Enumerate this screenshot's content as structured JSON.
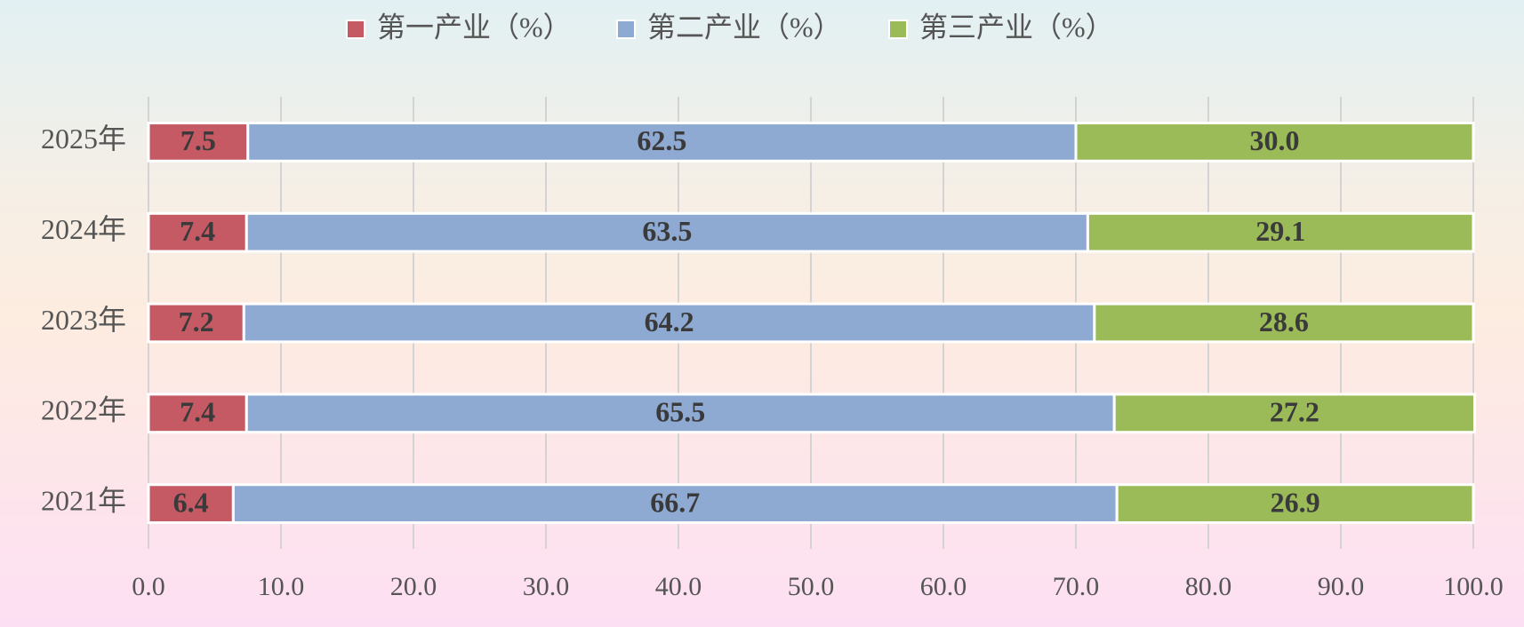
{
  "chart_data": {
    "type": "stacked-barh",
    "categories": [
      "2021年",
      "2022年",
      "2023年",
      "2024年",
      "2025年"
    ],
    "series": [
      {
        "name": "第一产业（%）",
        "color": "#c55a64",
        "values": [
          6.4,
          7.4,
          7.2,
          7.4,
          7.5
        ],
        "value_labels": [
          "6.4",
          "7.4",
          "7.2",
          "7.4",
          "7.5"
        ]
      },
      {
        "name": "第二产业（%）",
        "color": "#8eaad3",
        "values": [
          66.7,
          65.5,
          64.2,
          63.5,
          62.5
        ],
        "value_labels": [
          "66.7",
          "65.5",
          "64.2",
          "63.5",
          "62.5"
        ]
      },
      {
        "name": "第三产业（%）",
        "color": "#9bbb59",
        "values": [
          26.9,
          27.2,
          28.6,
          29.1,
          30.0
        ],
        "value_labels": [
          "26.9",
          "27.2",
          "28.6",
          "29.1",
          "30.0"
        ]
      }
    ],
    "xlim": [
      0,
      100
    ],
    "xticks": [
      {
        "value": 0,
        "label": "0.0"
      },
      {
        "value": 10,
        "label": "10.0"
      },
      {
        "value": 20,
        "label": "20.0"
      },
      {
        "value": 30,
        "label": "30.0"
      },
      {
        "value": 40,
        "label": "40.0"
      },
      {
        "value": 50,
        "label": "50.0"
      },
      {
        "value": 60,
        "label": "60.0"
      },
      {
        "value": 70,
        "label": "70.0"
      },
      {
        "value": 80,
        "label": "80.0"
      },
      {
        "value": 90,
        "label": "90.0"
      },
      {
        "value": 100,
        "label": "100.0"
      }
    ],
    "grid": true,
    "legend": "top"
  }
}
